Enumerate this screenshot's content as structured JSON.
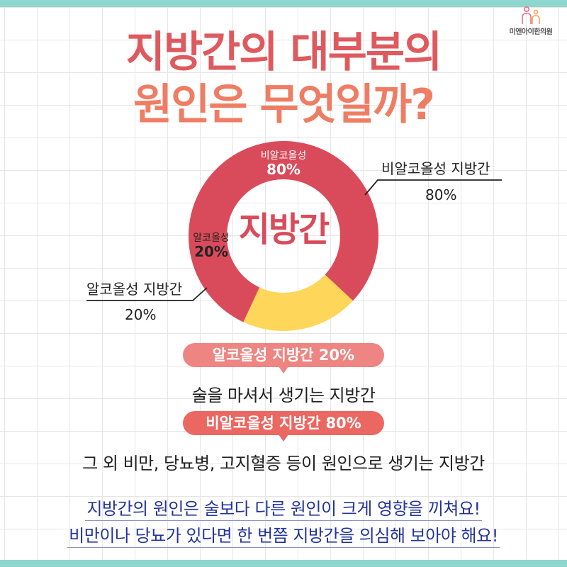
{
  "logo": {
    "text": "미앤아이한의원",
    "colors": {
      "left": "#e76f8a",
      "right": "#f2a650"
    }
  },
  "title": {
    "line1": "지방간의 대부분의",
    "line2": "원인은 무엇일까?"
  },
  "chart_data": {
    "type": "pie",
    "variant": "donut",
    "center_label": "지방간",
    "slices": [
      {
        "label": "비알코올성",
        "value": 80,
        "display": "80%",
        "color": "#d94b5b"
      },
      {
        "label": "알코올성",
        "value": 20,
        "display": "20%",
        "color": "#fdd65a"
      }
    ],
    "callouts": [
      {
        "label": "비알코올성 지방간",
        "value": "80%"
      },
      {
        "label": "알코올성 지방간",
        "value": "20%"
      }
    ]
  },
  "info": [
    {
      "pill": "알코올성 지방간 20%",
      "desc": "술을 마셔서 생기는 지방간",
      "color": "#ee8582"
    },
    {
      "pill": "비알코올성 지방간 80%",
      "desc": "그 외 비만, 당뇨병, 고지혈증 등이 원인으로 생기는 지방간",
      "color": "#eb6762"
    }
  ],
  "summary": {
    "line1": "지방간의 원인은 술보다 다른 원인이 크게 영향을 끼쳐요!",
    "line2": "비만이나 당뇨가 있다면 한 번쯤 지방간을 의심해 보아야 해요!"
  },
  "colors": {
    "band": "#8dd7cf",
    "title1": "#de5a5f",
    "title2": "#ee7d63",
    "summary": "#24349a"
  }
}
